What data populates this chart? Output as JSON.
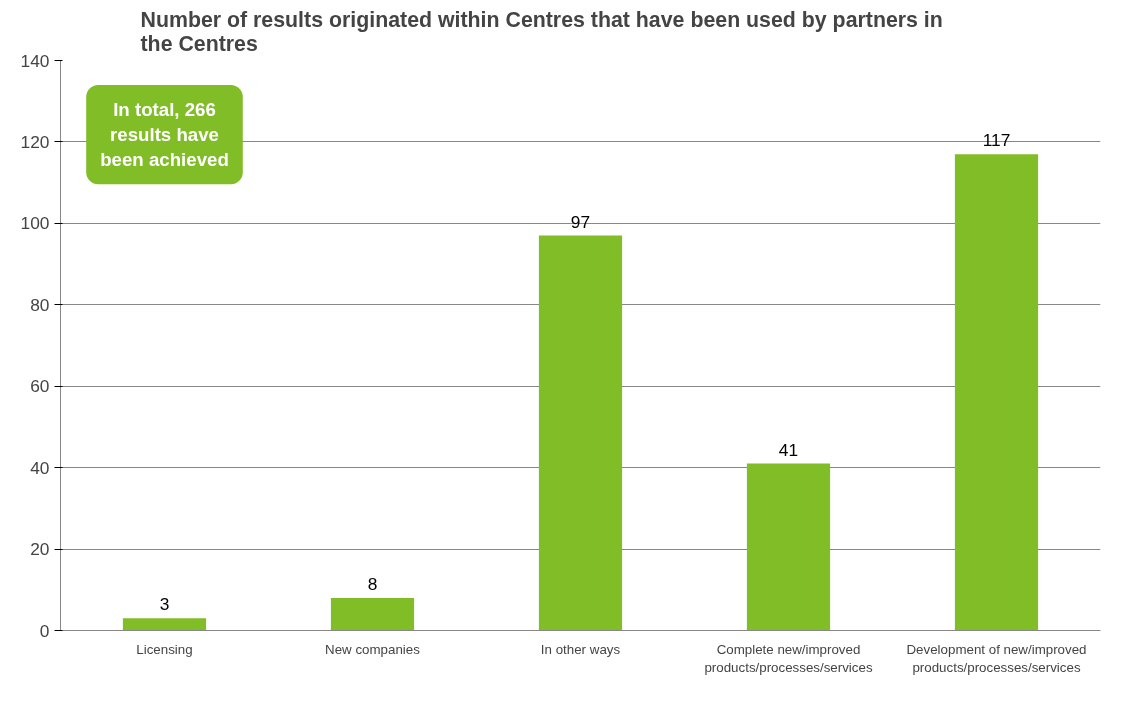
{
  "chart_data": {
    "type": "bar",
    "title": "Number of results originated within Centres that have been used by partners in the Centres",
    "categories": [
      "Licensing",
      "New companies",
      "In other ways",
      "Complete new/improved products/processes/services",
      "Development of new/improved products/processes/services"
    ],
    "values": [
      3,
      8,
      97,
      41,
      117
    ],
    "color": "#80bd27",
    "ylim": [
      0,
      140
    ],
    "yticks": [
      0,
      20,
      40,
      60,
      80,
      100,
      120,
      140
    ],
    "grid": "y",
    "data_labels": true,
    "annotations": [
      "In total, 266 results have been achieved"
    ]
  }
}
